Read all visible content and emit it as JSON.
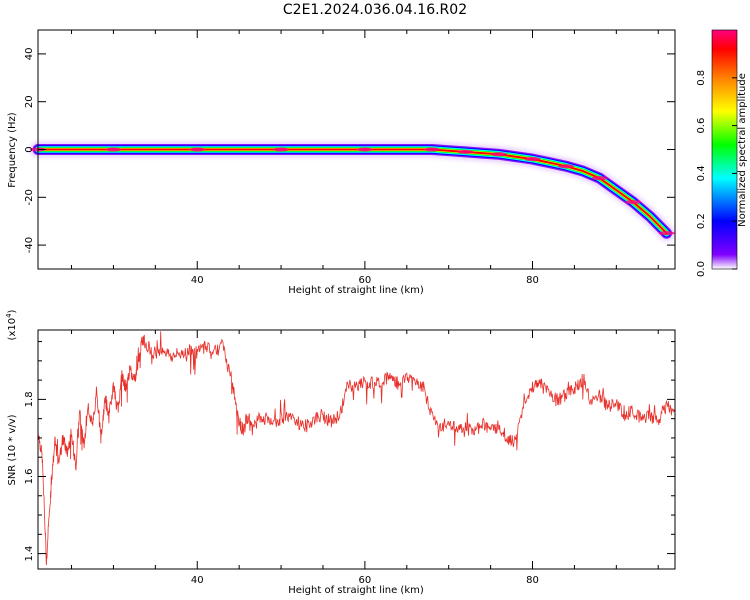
{
  "title": "C2E1.2024.036.04.16.R02",
  "chart_data": [
    {
      "type": "heatmap",
      "xlabel": "Height of straight line (km)",
      "ylabel": "Frequency (Hz)",
      "xlim": [
        21,
        97
      ],
      "ylim": [
        -50,
        50
      ],
      "xticks": [
        40,
        60,
        80
      ],
      "yticks": [
        -40,
        -20,
        0,
        20,
        40
      ],
      "ridge": {
        "x": [
          21,
          25,
          30,
          35,
          40,
          45,
          50,
          55,
          60,
          65,
          68,
          70,
          72,
          74,
          76,
          78,
          80,
          82,
          84,
          86,
          88,
          90,
          92,
          94,
          96
        ],
        "y": [
          0,
          0,
          0,
          0,
          0,
          0,
          0,
          0,
          0,
          0,
          0,
          -0.5,
          -1,
          -1.5,
          -2,
          -3,
          -4,
          -5.5,
          -7,
          -9,
          -12,
          -17,
          -22,
          -28,
          -35
        ]
      },
      "colorbar": {
        "label": "Normalized spectral amplitude",
        "range": [
          0,
          1
        ],
        "ticks": [
          0.0,
          0.2,
          0.4,
          0.6,
          0.8
        ],
        "tick_labels": [
          "0.0",
          "0.2",
          "0.4",
          "0.6",
          "0.8"
        ],
        "colors": [
          "#ffffff",
          "#8000ff",
          "#0000ff",
          "#00ffff",
          "#00ff00",
          "#ffff00",
          "#ff8000",
          "#ff0000",
          "#ff0080"
        ]
      }
    },
    {
      "type": "line",
      "xlabel": "Height of straight line (km)",
      "ylabel": "SNR (10 * v/v)",
      "exponent_label": "(x10",
      "exponent_power": "4",
      "exponent_close": ")",
      "xlim": [
        21,
        97
      ],
      "ylim": [
        1.36,
        1.98
      ],
      "xticks": [
        40,
        60,
        80
      ],
      "yticks": [
        1.4,
        1.6,
        1.8
      ],
      "ytick_labels": [
        "1.4",
        "1.6",
        "1.8"
      ],
      "color": "#e8302a",
      "series": [
        {
          "x": [
            21,
            21.5,
            22,
            22.5,
            23,
            23.5,
            24,
            24.5,
            25,
            25.5,
            26,
            26.5,
            27,
            27.5,
            28,
            28.5,
            29,
            29.5,
            30,
            30.5,
            31,
            31.5,
            32,
            32.5,
            33,
            33.5,
            34,
            35,
            36,
            37,
            38,
            39,
            40,
            41,
            42,
            43,
            44,
            44.5,
            45,
            45.5,
            46,
            47,
            48,
            49,
            50,
            51,
            52,
            53,
            54,
            55,
            56,
            57,
            58,
            59,
            60,
            61,
            62,
            63,
            64,
            65,
            66,
            67,
            68,
            69,
            70,
            71,
            72,
            73,
            74,
            75,
            76,
            77,
            78,
            79,
            80,
            81,
            82,
            83,
            84,
            85,
            86,
            87,
            88,
            89,
            90,
            91,
            92,
            93,
            94,
            95,
            96,
            97
          ],
          "y": [
            1.72,
            1.65,
            1.38,
            1.55,
            1.69,
            1.64,
            1.7,
            1.66,
            1.72,
            1.62,
            1.77,
            1.68,
            1.78,
            1.73,
            1.82,
            1.7,
            1.8,
            1.76,
            1.84,
            1.77,
            1.86,
            1.83,
            1.88,
            1.85,
            1.9,
            1.96,
            1.94,
            1.92,
            1.93,
            1.91,
            1.92,
            1.93,
            1.92,
            1.94,
            1.93,
            1.94,
            1.86,
            1.8,
            1.74,
            1.72,
            1.75,
            1.74,
            1.75,
            1.74,
            1.75,
            1.76,
            1.74,
            1.73,
            1.75,
            1.76,
            1.74,
            1.76,
            1.84,
            1.83,
            1.85,
            1.84,
            1.85,
            1.86,
            1.84,
            1.86,
            1.85,
            1.83,
            1.76,
            1.73,
            1.74,
            1.72,
            1.73,
            1.71,
            1.74,
            1.72,
            1.73,
            1.7,
            1.69,
            1.8,
            1.83,
            1.84,
            1.82,
            1.8,
            1.81,
            1.83,
            1.85,
            1.79,
            1.81,
            1.78,
            1.79,
            1.76,
            1.77,
            1.75,
            1.76,
            1.74,
            1.78,
            1.77
          ]
        }
      ]
    }
  ]
}
